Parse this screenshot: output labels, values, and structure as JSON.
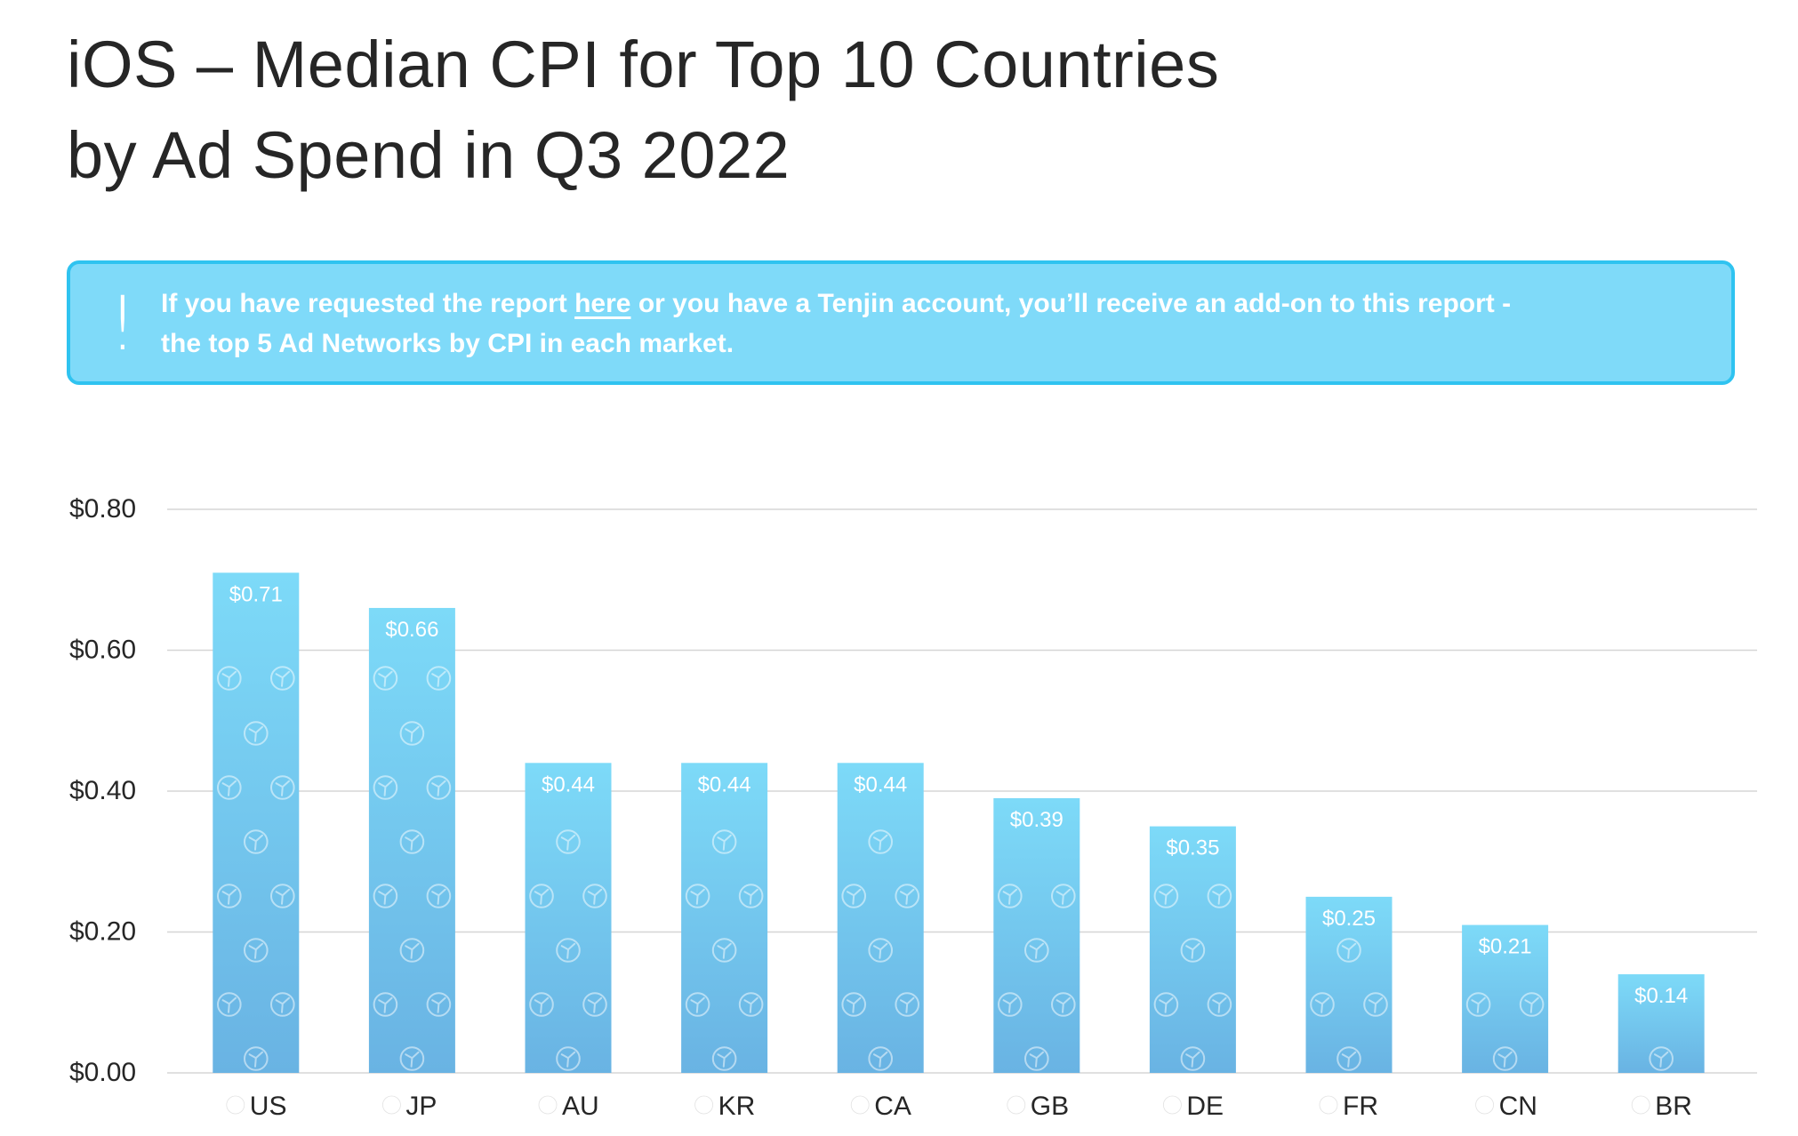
{
  "title": {
    "line1": "iOS – Median CPI for Top 10 Countries",
    "line2": "by Ad Spend in Q3 2022"
  },
  "notice": {
    "icon": "exclamation-icon",
    "text_before": "If you have requested the report ",
    "link_text": "here",
    "text_after": " or you have a Tenjin account, you’ll receive an add-on to this report -",
    "line2": "the top 5 Ad Networks by CPI in each market."
  },
  "colors": {
    "bar_top": "#7ddaf8",
    "bar_bottom": "#69b3e3",
    "notice_bg": "#7fdaf9",
    "notice_border": "#2fc3f0",
    "grid": "#d6d6d6"
  },
  "chart_data": {
    "type": "bar",
    "title": "iOS – Median CPI for Top 10 Countries by Ad Spend in Q3 2022",
    "xlabel": "",
    "ylabel": "",
    "ylim": [
      0,
      0.8
    ],
    "yticks": [
      {
        "value": 0.8,
        "label": "$0.80"
      },
      {
        "value": 0.6,
        "label": "$0.60"
      },
      {
        "value": 0.4,
        "label": "$0.40"
      },
      {
        "value": 0.2,
        "label": "$0.20"
      },
      {
        "value": 0.0,
        "label": "$0.00"
      }
    ],
    "grid": true,
    "categories": [
      "US",
      "JP",
      "AU",
      "KR",
      "CA",
      "GB",
      "DE",
      "FR",
      "CN",
      "BR"
    ],
    "flags": [
      "us-flag-icon",
      "jp-flag-icon",
      "au-flag-icon",
      "kr-flag-icon",
      "ca-flag-icon",
      "gb-flag-icon",
      "de-flag-icon",
      "fr-flag-icon",
      "cn-flag-icon",
      "br-flag-icon"
    ],
    "values": [
      0.71,
      0.66,
      0.44,
      0.44,
      0.44,
      0.39,
      0.35,
      0.25,
      0.21,
      0.14
    ],
    "value_labels": [
      "$0.71",
      "$0.66",
      "$0.44",
      "$0.44",
      "$0.44",
      "$0.39",
      "$0.35",
      "$0.25",
      "$0.21",
      "$0.14"
    ]
  }
}
